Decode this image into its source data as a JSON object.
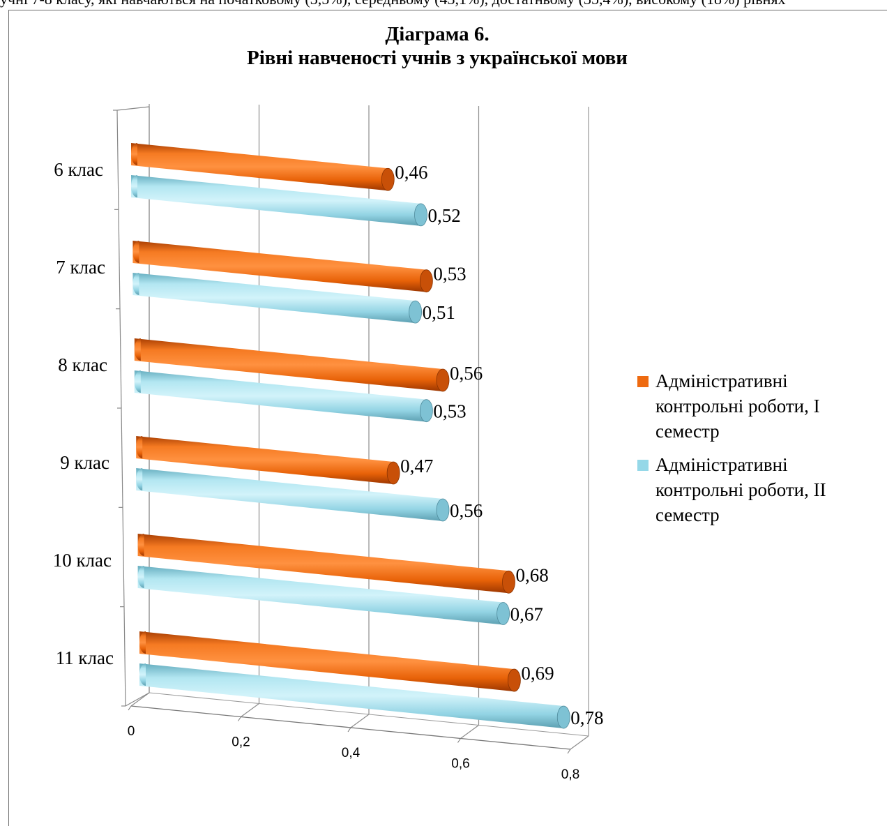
{
  "top_text": "учні 7-8 класу, які навчаються на початковому (3,5%), середньому (43,1%), достатньому (35,4%), високому (18%) рівнях",
  "title": {
    "line1": "Діаграма 6.",
    "line2": "Рівні навченості учнів з української мови"
  },
  "chart_data": {
    "type": "bar",
    "orientation": "horizontal",
    "style": "3d-cylinder",
    "title": "Діаграма 6. Рівні навченості учнів з української мови",
    "categories": [
      "6 клас",
      "7 клас",
      "8 клас",
      "9 клас",
      "10 клас",
      "11 клас"
    ],
    "series": [
      {
        "name": "Адміністративні контрольні роботи, І семестр",
        "color": "#ee6a10",
        "values": [
          0.46,
          0.53,
          0.56,
          0.47,
          0.68,
          0.69
        ]
      },
      {
        "name": "Адміністративні контрольні роботи, ІІ семестр",
        "color": "#95d8e8",
        "values": [
          0.52,
          0.51,
          0.53,
          0.56,
          0.67,
          0.78
        ]
      }
    ],
    "data_labels_1": [
      "0,46",
      "0,53",
      "0,56",
      "0,47",
      "0,68",
      "0,69"
    ],
    "data_labels_2": [
      "0,52",
      "0,51",
      "0,53",
      "0,56",
      "0,67",
      "0,78"
    ],
    "x_ticks": [
      0,
      0.2,
      0.4,
      0.6,
      0.8
    ],
    "x_tick_labels": [
      "0",
      "0,2",
      "0,4",
      "0,6",
      "0,8"
    ],
    "xlim": [
      0,
      0.8
    ],
    "grid": "vertical",
    "legend_position": "right"
  },
  "legend": {
    "item1_lines": [
      "Адміністративні",
      "контрольні  роботи, І",
      "семестр"
    ],
    "item2_lines": [
      "Адміністративні",
      "контрольні роботи, ІІ",
      "семестр"
    ]
  }
}
